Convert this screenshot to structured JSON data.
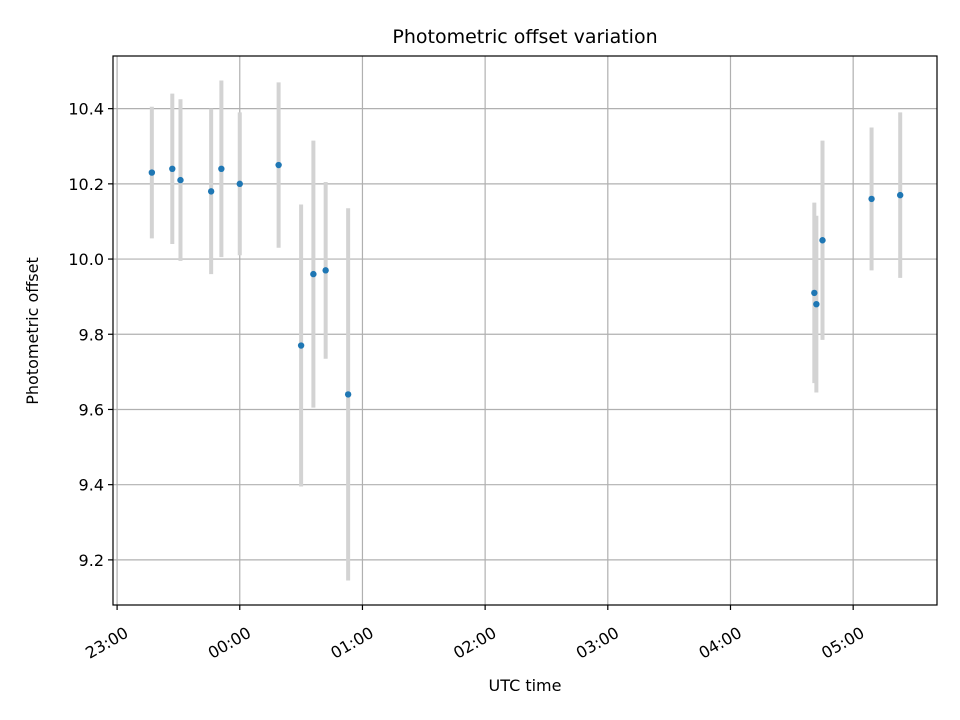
{
  "chart_data": {
    "type": "scatter",
    "title": "Photometric offset variation",
    "xlabel": "UTC time",
    "ylabel": "Photometric offset",
    "x_axis_type": "time",
    "xlim": [
      "22:58",
      "05:41"
    ],
    "ylim": [
      9.08,
      10.54
    ],
    "x_ticks": [
      "23:00",
      "00:00",
      "01:00",
      "02:00",
      "03:00",
      "04:00",
      "05:00"
    ],
    "y_ticks": [
      "9.2",
      "9.4",
      "9.6",
      "9.8",
      "10.0",
      "10.2",
      "10.4"
    ],
    "grid": true,
    "colors": {
      "marker": "#1f77b4",
      "errorbar": "#d3d3d3",
      "grid": "#b0b0b0",
      "axes": "#000000"
    },
    "points": [
      {
        "x": "23:17",
        "y": 10.23,
        "err": 0.175
      },
      {
        "x": "23:27",
        "y": 10.24,
        "err": 0.2
      },
      {
        "x": "23:31",
        "y": 10.21,
        "err": 0.215
      },
      {
        "x": "23:46",
        "y": 10.18,
        "err": 0.22
      },
      {
        "x": "23:51",
        "y": 10.24,
        "err": 0.235
      },
      {
        "x": "00:00",
        "y": 10.2,
        "err": 0.19
      },
      {
        "x": "00:19",
        "y": 10.25,
        "err": 0.22
      },
      {
        "x": "00:30",
        "y": 9.77,
        "err": 0.375
      },
      {
        "x": "00:36",
        "y": 9.96,
        "err": 0.355
      },
      {
        "x": "00:42",
        "y": 9.97,
        "err": 0.235
      },
      {
        "x": "00:53",
        "y": 9.64,
        "err": 0.495
      },
      {
        "x": "04:41",
        "y": 9.91,
        "err": 0.24
      },
      {
        "x": "04:42",
        "y": 9.88,
        "err": 0.235
      },
      {
        "x": "04:45",
        "y": 10.05,
        "err": 0.265
      },
      {
        "x": "05:09",
        "y": 10.16,
        "err": 0.19
      },
      {
        "x": "05:23",
        "y": 10.17,
        "err": 0.22
      }
    ]
  }
}
